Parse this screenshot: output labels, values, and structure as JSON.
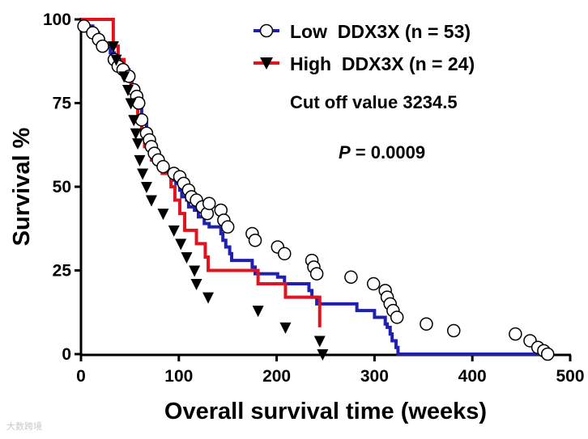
{
  "chart_data": {
    "type": "line",
    "xlabel": "Overall survival time (weeks)",
    "ylabel": "Survival %",
    "xlim": [
      0,
      500
    ],
    "ylim": [
      0,
      100
    ],
    "xticks": [
      "0",
      "100",
      "200",
      "300",
      "400",
      "500"
    ],
    "yticks": [
      "0",
      "25",
      "50",
      "75",
      "100"
    ],
    "grid": false,
    "legend_position": "top-right",
    "series": [
      {
        "name": "Low  DDX3X (n = 53)",
        "color": "#1f1fb0",
        "marker": "open-circle",
        "x": [
          0,
          3,
          12,
          18,
          22,
          30,
          34,
          38,
          43,
          49,
          52,
          55,
          57,
          58,
          62,
          67,
          70,
          72,
          74,
          78,
          81,
          86,
          92,
          97,
          101,
          103,
          108,
          110,
          116,
          120,
          126,
          131,
          143,
          145,
          148,
          152,
          154,
          175,
          178,
          201,
          208,
          233,
          236,
          241,
          282,
          300,
          311,
          313,
          316,
          318,
          322,
          324,
          350,
          383,
          444,
          459,
          467,
          471,
          477,
          480
        ],
        "y": [
          100,
          98,
          96,
          94,
          92,
          90,
          88,
          86,
          85,
          83,
          79,
          77,
          75,
          74,
          70,
          66,
          64,
          62,
          60,
          58,
          56,
          54,
          52,
          51,
          49,
          47,
          46,
          44,
          43,
          41,
          39,
          38,
          36,
          34,
          32,
          30,
          28,
          26,
          24,
          23,
          21,
          19,
          17,
          15,
          13,
          11,
          9,
          8,
          6,
          4,
          2,
          0,
          0,
          0,
          0,
          0,
          0,
          0,
          0,
          0
        ],
        "marker_points": [
          [
            3,
            98
          ],
          [
            12,
            96
          ],
          [
            18,
            94
          ],
          [
            22,
            92
          ],
          [
            34,
            88
          ],
          [
            38,
            86
          ],
          [
            43,
            85
          ],
          [
            49,
            83
          ],
          [
            54,
            79
          ],
          [
            57,
            77
          ],
          [
            59,
            75
          ],
          [
            62,
            70
          ],
          [
            67,
            66
          ],
          [
            70,
            64
          ],
          [
            72,
            62
          ],
          [
            75,
            60
          ],
          [
            79,
            58
          ],
          [
            84,
            56
          ],
          [
            95,
            54
          ],
          [
            101,
            53
          ],
          [
            105,
            51
          ],
          [
            110,
            49
          ],
          [
            113,
            47
          ],
          [
            118,
            46
          ],
          [
            124,
            44
          ],
          [
            129,
            42
          ],
          [
            131,
            45
          ],
          [
            143,
            43
          ],
          [
            146,
            40
          ],
          [
            150,
            38
          ],
          [
            175,
            36
          ],
          [
            178,
            34
          ],
          [
            201,
            32
          ],
          [
            208,
            30
          ],
          [
            236,
            28
          ],
          [
            238,
            26
          ],
          [
            241,
            24
          ],
          [
            276,
            23
          ],
          [
            299,
            21
          ],
          [
            311,
            19
          ],
          [
            313,
            17
          ],
          [
            316,
            15
          ],
          [
            319,
            13
          ],
          [
            323,
            11
          ],
          [
            353,
            9
          ],
          [
            381,
            7
          ],
          [
            444,
            6
          ],
          [
            459,
            4
          ],
          [
            467,
            2
          ],
          [
            473,
            1
          ],
          [
            477,
            0
          ]
        ]
      },
      {
        "name": "High  DDX3X (n = 24)",
        "color": "#e0141e",
        "marker": "filled-down-triangle",
        "x": [
          0,
          33,
          38,
          44,
          51,
          55,
          58,
          62,
          65,
          72,
          83,
          92,
          96,
          101,
          106,
          118,
          127,
          130,
          181,
          209,
          244
        ],
        "y": [
          100,
          92,
          88,
          83,
          79,
          75,
          70,
          67,
          62,
          58,
          54,
          50,
          46,
          42,
          37,
          33,
          29,
          25,
          21,
          17,
          8
        ],
        "marker_points": [
          [
            33,
            92
          ],
          [
            36,
            88
          ],
          [
            44,
            83
          ],
          [
            48,
            79
          ],
          [
            51,
            75
          ],
          [
            54,
            70
          ],
          [
            56,
            66
          ],
          [
            58,
            63
          ],
          [
            60,
            58
          ],
          [
            63,
            54
          ],
          [
            67,
            50
          ],
          [
            72,
            46
          ],
          [
            84,
            42
          ],
          [
            95,
            37
          ],
          [
            102,
            33
          ],
          [
            108,
            29
          ],
          [
            116,
            25
          ],
          [
            118,
            21
          ],
          [
            130,
            17
          ],
          [
            181,
            13
          ],
          [
            209,
            8
          ],
          [
            244,
            4
          ],
          [
            247,
            0
          ]
        ]
      }
    ],
    "annotations": {
      "cutoff": "Cut off value 3234.5",
      "p_label": "P",
      "p_value": " = 0.0009"
    }
  },
  "watermark": "大数跨境"
}
